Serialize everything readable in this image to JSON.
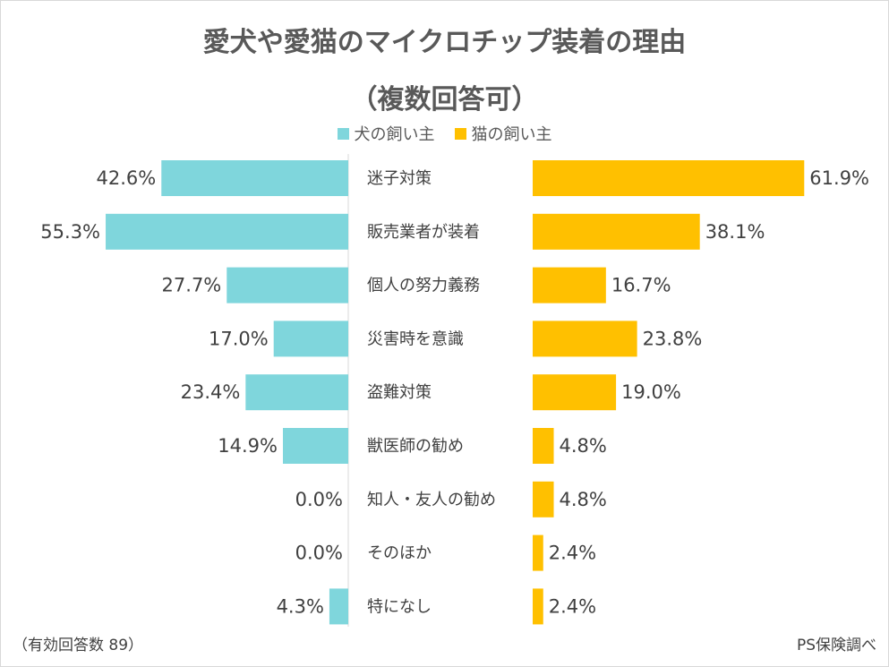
{
  "chart_data": {
    "type": "bar",
    "title": "愛犬や愛猫のマイクロチップ装着の理由",
    "subtitle": "（複数回答可）",
    "categories": [
      "迷子対策",
      "販売業者が装着",
      "個人の努力義務",
      "災害時を意識",
      "盗難対策",
      "獣医師の勧め",
      "知人・友人の勧め",
      "そのほか",
      "特になし"
    ],
    "series": [
      {
        "name": "犬の飼い主",
        "color": "#7fd6dc",
        "values": [
          42.6,
          55.3,
          27.7,
          17.0,
          23.4,
          14.9,
          0.0,
          0.0,
          4.3
        ],
        "labels": [
          "42.6%",
          "55.3%",
          "27.7%",
          "17.0%",
          "23.4%",
          "14.9%",
          "0.0%",
          "0.0%",
          "4.3%"
        ]
      },
      {
        "name": "猫の飼い主",
        "color": "#ffc000",
        "values": [
          61.9,
          38.1,
          16.7,
          23.8,
          19.0,
          4.8,
          4.8,
          2.4,
          2.4
        ],
        "labels": [
          "61.9%",
          "38.1%",
          "16.7%",
          "23.8%",
          "19.0%",
          "4.8%",
          "4.8%",
          "2.4%",
          "2.4%"
        ]
      }
    ],
    "xlim": [
      0,
      100
    ],
    "legend": "top-center"
  },
  "footer": {
    "note": "（有効回答数 89）",
    "source": "PS保険調べ"
  }
}
